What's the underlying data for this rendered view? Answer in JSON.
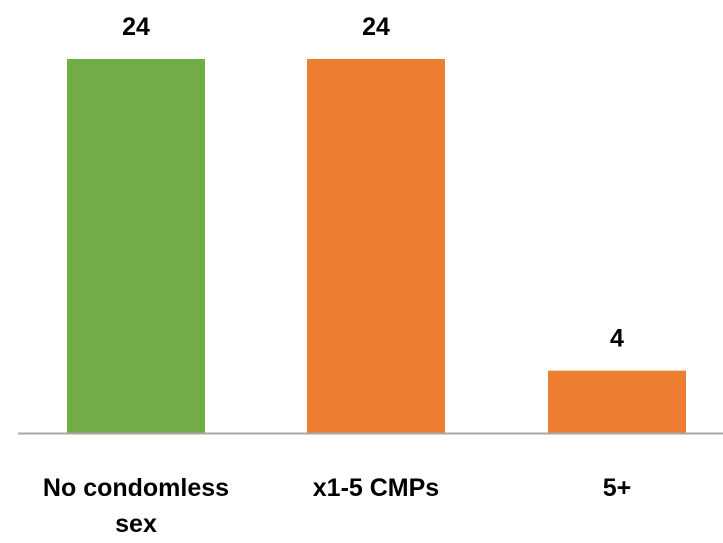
{
  "chart_data": {
    "type": "bar",
    "categories": [
      [
        "No condomless",
        "sex"
      ],
      [
        "x1-5 CMPs"
      ],
      [
        "5+"
      ]
    ],
    "values": [
      24,
      24,
      4
    ],
    "data_labels": [
      "24",
      "24",
      "4"
    ],
    "colors": [
      "#70AD47",
      "#ED7D31",
      "#ED7D31"
    ],
    "baseline_color": "#A6A6A6",
    "ylim": [
      0,
      24
    ],
    "grid": false,
    "legend": "none",
    "title": "",
    "xlabel": "",
    "ylabel": ""
  }
}
